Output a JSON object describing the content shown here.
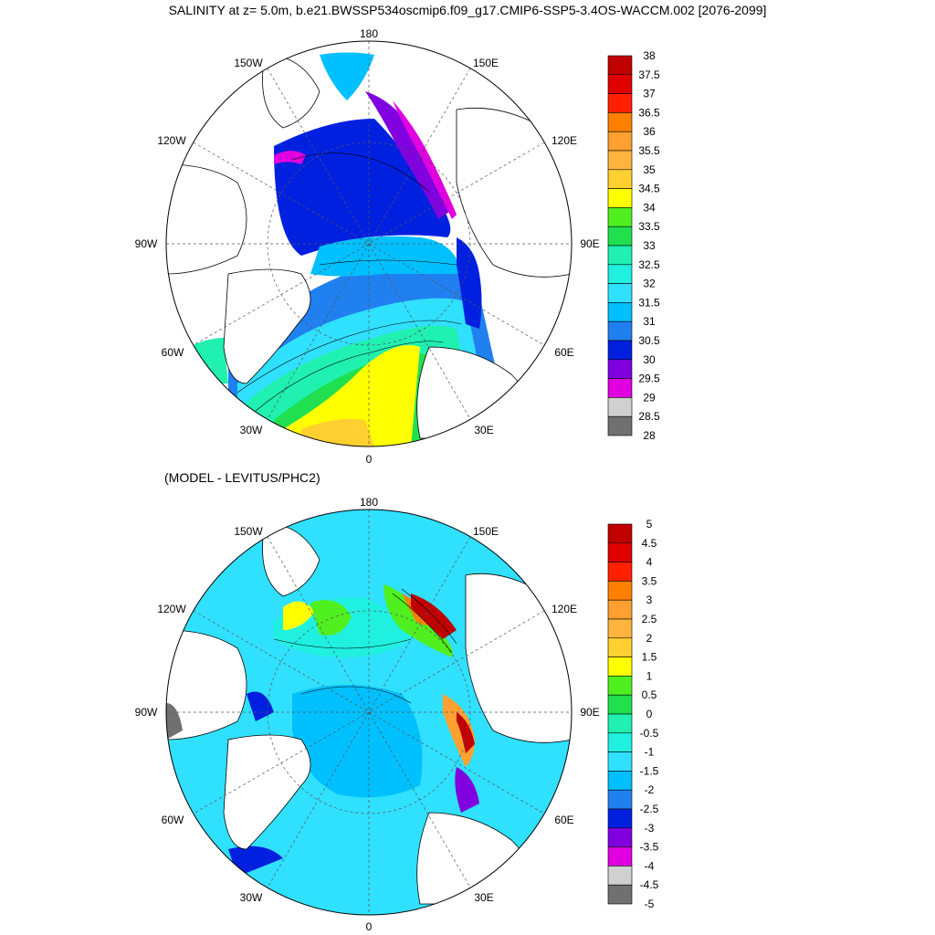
{
  "title": "SALINITY at z=   5.0m, b.e21.BWSSP534oscmip6.f09_g17.CMIP6-SSP5-3.4OS-WACCM.002 [2076-2099]",
  "subtitle": "(MODEL - LEVITUS/PHC2)",
  "maps": [
    {
      "name": "salinity",
      "longitude_labels": [
        "180",
        "150E",
        "120E",
        "90E",
        "60E",
        "30E",
        "0",
        "30W",
        "60W",
        "90W",
        "120W",
        "150W"
      ],
      "colorbar": {
        "labels": [
          "38",
          "37.5",
          "37",
          "36.5",
          "36",
          "35.5",
          "35",
          "34.5",
          "34",
          "33.5",
          "33",
          "32.5",
          "32",
          "31.5",
          "31",
          "30.5",
          "30",
          "29.5",
          "29",
          "28.5",
          "28"
        ],
        "colors": [
          "#c00000",
          "#e00000",
          "#ff2000",
          "#ff8000",
          "#ffa030",
          "#ffb440",
          "#ffd030",
          "#ffff00",
          "#50f020",
          "#20e050",
          "#20f0b0",
          "#20f0e0",
          "#30e0ff",
          "#00c0ff",
          "#2080f0",
          "#0020e0",
          "#8000e0",
          "#e000e0",
          "#d0d0d0",
          "#707070"
        ]
      }
    },
    {
      "name": "difference",
      "longitude_labels": [
        "180",
        "150E",
        "120E",
        "90E",
        "60E",
        "30E",
        "0",
        "30W",
        "60W",
        "90W",
        "120W",
        "150W"
      ],
      "colorbar": {
        "labels": [
          "5",
          "4.5",
          "4",
          "3.5",
          "3",
          "2.5",
          "2",
          "1.5",
          "1",
          "0.5",
          "0",
          "-0.5",
          "-1",
          "-1.5",
          "-2",
          "-2.5",
          "-3",
          "-3.5",
          "-4",
          "-4.5",
          "-5"
        ],
        "colors": [
          "#c00000",
          "#e00000",
          "#ff2000",
          "#ff8000",
          "#ffa030",
          "#ffb440",
          "#ffd030",
          "#ffff00",
          "#50f020",
          "#20e050",
          "#20f0b0",
          "#20f0e0",
          "#30e0ff",
          "#00c0ff",
          "#2080f0",
          "#0020e0",
          "#8000e0",
          "#e000e0",
          "#d0d0d0",
          "#707070"
        ]
      }
    }
  ]
}
